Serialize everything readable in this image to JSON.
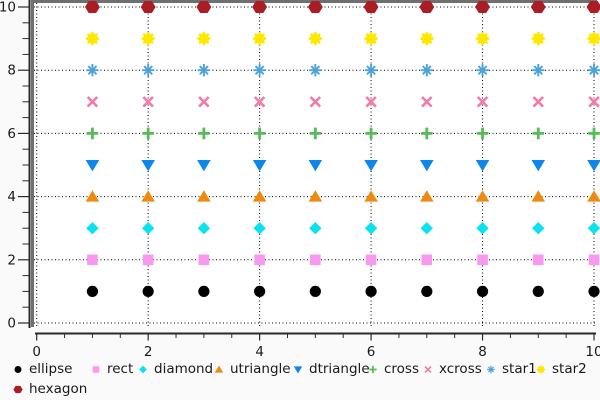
{
  "figure": {
    "background": "#fafafa",
    "plot_background": "#ffffff",
    "plot_border_color": "#6f6f6f",
    "axis_color": "#2a2a2a",
    "grid_color": "#000000",
    "text_color": "#1a1a1a"
  },
  "chart_data": {
    "type": "scatter",
    "title": "",
    "xlabel": "",
    "ylabel": "",
    "xlim": [
      0,
      10
    ],
    "ylim": [
      0,
      10
    ],
    "x_major_ticks": [
      0,
      2,
      4,
      6,
      8,
      10
    ],
    "y_major_ticks": [
      0,
      2,
      4,
      6,
      8,
      10
    ],
    "x_tick_labels": [
      "0",
      "2",
      "4",
      "6",
      "8",
      "10"
    ],
    "y_tick_labels": [
      "0",
      "2",
      "4",
      "6",
      "8",
      "10"
    ],
    "minor_tick_step": 0.5,
    "grid": "dotted lines at major ticks",
    "legend_position": "bottom",
    "x": [
      1,
      2,
      3,
      4,
      5,
      6,
      7,
      8,
      9,
      10
    ],
    "series": [
      {
        "name": "ellipse",
        "marker": "ellipse",
        "color": "#000000",
        "values": [
          1,
          1,
          1,
          1,
          1,
          1,
          1,
          1,
          1,
          1
        ]
      },
      {
        "name": "rect",
        "marker": "rect",
        "color": "#f998f0",
        "values": [
          2,
          2,
          2,
          2,
          2,
          2,
          2,
          2,
          2,
          2
        ]
      },
      {
        "name": "diamond",
        "marker": "diamond",
        "color": "#0be2ee",
        "values": [
          3,
          3,
          3,
          3,
          3,
          3,
          3,
          3,
          3,
          3
        ]
      },
      {
        "name": "utriangle",
        "marker": "utriangle",
        "color": "#ef8a11",
        "values": [
          4,
          4,
          4,
          4,
          4,
          4,
          4,
          4,
          4,
          4
        ]
      },
      {
        "name": "dtriangle",
        "marker": "dtriangle",
        "color": "#0d87e9",
        "values": [
          5,
          5,
          5,
          5,
          5,
          5,
          5,
          5,
          5,
          5
        ]
      },
      {
        "name": "cross",
        "marker": "cross",
        "color": "#57bb57",
        "values": [
          6,
          6,
          6,
          6,
          6,
          6,
          6,
          6,
          6,
          6
        ]
      },
      {
        "name": "xcross",
        "marker": "xcross",
        "color": "#f17aab",
        "values": [
          7,
          7,
          7,
          7,
          7,
          7,
          7,
          7,
          7,
          7
        ]
      },
      {
        "name": "star1",
        "marker": "star1",
        "color": "#4ba3d9",
        "values": [
          8,
          8,
          8,
          8,
          8,
          8,
          8,
          8,
          8,
          8
        ]
      },
      {
        "name": "star2",
        "marker": "star2",
        "color": "#ffe800",
        "values": [
          9,
          9,
          9,
          9,
          9,
          9,
          9,
          9,
          9,
          9
        ]
      },
      {
        "name": "hexagon",
        "marker": "hexagon",
        "color": "#a81e24",
        "values": [
          10,
          10,
          10,
          10,
          10,
          10,
          10,
          10,
          10,
          10
        ]
      }
    ],
    "legend_rows": [
      [
        "ellipse",
        "rect",
        "diamond",
        "utriangle",
        "dtriangle",
        "cross",
        "xcross",
        "star1",
        "star2"
      ],
      [
        "hexagon"
      ]
    ]
  }
}
